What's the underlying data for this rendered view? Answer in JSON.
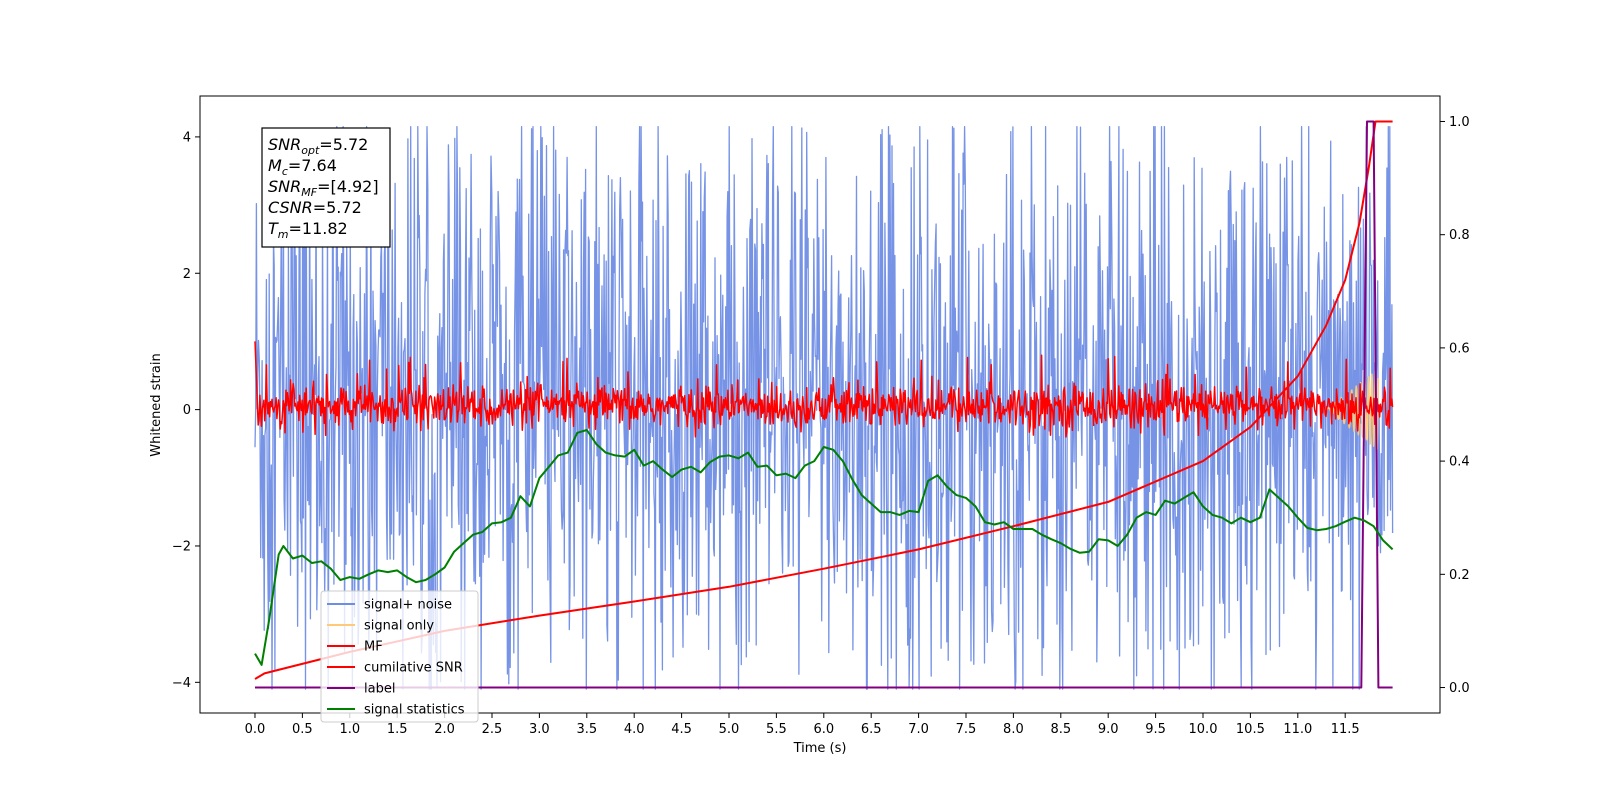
{
  "chart_data": {
    "type": "line",
    "xlabel": "Time (s)",
    "ylabel": "Whitened strain",
    "x_ticks": [
      "0.0",
      "0.5",
      "1.0",
      "1.5",
      "2.0",
      "2.5",
      "3.0",
      "3.5",
      "4.0",
      "4.5",
      "5.0",
      "5.5",
      "6.0",
      "6.5",
      "7.0",
      "7.5",
      "8.0",
      "8.5",
      "9.0",
      "9.5",
      "10.0",
      "10.5",
      "11.0",
      "11.5"
    ],
    "xlim": [
      -0.58,
      12.5
    ],
    "ylim": [
      -4.45,
      4.6
    ],
    "y_ticks": [
      "4",
      "2",
      "0",
      "−2",
      "−4"
    ],
    "y_tick_values": [
      4,
      2,
      0,
      -2,
      -4
    ],
    "y2lim": [
      -0.045,
      1.045
    ],
    "y2_ticks": [
      "1.0",
      "0.8",
      "0.6",
      "0.4",
      "0.2",
      "0.0"
    ],
    "y2_tick_values": [
      1.0,
      0.8,
      0.6,
      0.4,
      0.2,
      0.0
    ],
    "grid": false,
    "legend_position": "lower-left",
    "annotation_box": {
      "lines": [
        {
          "sym": "SNR",
          "sub": "opt",
          "val": "=5.72"
        },
        {
          "sym": "M",
          "sub": "c",
          "val": "=7.64"
        },
        {
          "sym": "SNR",
          "sub": "MF",
          "val": "=[4.92]"
        },
        {
          "sym": "CSNR",
          "sub": "",
          "val": "=5.72"
        },
        {
          "sym": "T",
          "sub": "m",
          "val": "=11.82"
        }
      ]
    },
    "series": [
      {
        "name": "signal+ noise",
        "color": "#6f8de5",
        "axis": "left",
        "kind": "noise",
        "x_range": [
          0.0,
          12.0
        ],
        "envelope": [
          -2.4,
          3.2
        ],
        "extremes": [
          -4.1,
          4.15
        ]
      },
      {
        "name": "signal only",
        "color": "#ffc978",
        "axis": "left",
        "kind": "chirp",
        "x_range": [
          11.3,
          11.85
        ],
        "amplitude": 0.6
      },
      {
        "name": "MF",
        "color": "#ff0000",
        "axis": "left",
        "kind": "noise",
        "x_range": [
          0.0,
          12.0
        ],
        "envelope": [
          -0.3,
          0.5
        ],
        "extremes": [
          -0.4,
          1.0
        ]
      },
      {
        "name": "cumilative SNR",
        "color": "#ff0000",
        "axis": "right",
        "x": [
          0.0,
          0.1,
          1.0,
          2.0,
          3.0,
          4.0,
          5.0,
          6.0,
          7.0,
          8.0,
          9.0,
          10.0,
          10.5,
          11.0,
          11.3,
          11.5,
          11.65,
          11.75,
          11.82,
          12.0
        ],
        "y": [
          0.015,
          0.025,
          0.063,
          0.1,
          0.127,
          0.152,
          0.178,
          0.21,
          0.244,
          0.285,
          0.328,
          0.4,
          0.46,
          0.55,
          0.64,
          0.72,
          0.82,
          0.92,
          1.0,
          1.0
        ]
      },
      {
        "name": "label",
        "color": "#800080",
        "axis": "right",
        "x": [
          0.0,
          11.67,
          11.73,
          11.77,
          11.8,
          11.85,
          11.93,
          11.95,
          12.0
        ],
        "y": [
          0.0,
          0.0,
          1.0,
          1.0,
          1.0,
          0.0,
          0.0,
          0.0,
          0.0
        ]
      },
      {
        "name": "signal statistics",
        "color": "#008000",
        "axis": "right",
        "x": [
          0.0,
          0.07,
          0.15,
          0.25,
          0.3,
          0.4,
          0.5,
          0.6,
          0.7,
          0.8,
          0.9,
          1.0,
          1.1,
          1.2,
          1.3,
          1.4,
          1.5,
          1.6,
          1.7,
          1.8,
          1.9,
          2.0,
          2.1,
          2.2,
          2.3,
          2.4,
          2.5,
          2.6,
          2.7,
          2.8,
          2.9,
          3.0,
          3.1,
          3.2,
          3.3,
          3.4,
          3.5,
          3.6,
          3.7,
          3.8,
          3.9,
          4.0,
          4.1,
          4.2,
          4.3,
          4.4,
          4.5,
          4.6,
          4.7,
          4.8,
          4.9,
          5.0,
          5.1,
          5.2,
          5.3,
          5.4,
          5.5,
          5.6,
          5.7,
          5.8,
          5.9,
          6.0,
          6.1,
          6.2,
          6.3,
          6.4,
          6.5,
          6.6,
          6.7,
          6.8,
          6.9,
          7.0,
          7.1,
          7.2,
          7.3,
          7.4,
          7.5,
          7.6,
          7.7,
          7.8,
          7.9,
          8.0,
          8.1,
          8.2,
          8.3,
          8.4,
          8.5,
          8.6,
          8.7,
          8.8,
          8.9,
          9.0,
          9.1,
          9.2,
          9.3,
          9.4,
          9.5,
          9.6,
          9.7,
          9.8,
          9.9,
          10.0,
          10.1,
          10.2,
          10.3,
          10.4,
          10.5,
          10.6,
          10.7,
          10.8,
          10.9,
          11.0,
          11.1,
          11.2,
          11.3,
          11.4,
          11.5,
          11.6,
          11.7,
          11.8,
          11.9,
          12.0
        ],
        "y": [
          0.06,
          0.04,
          0.12,
          0.235,
          0.25,
          0.228,
          0.233,
          0.22,
          0.223,
          0.21,
          0.19,
          0.195,
          0.192,
          0.2,
          0.207,
          0.204,
          0.207,
          0.195,
          0.186,
          0.19,
          0.2,
          0.212,
          0.24,
          0.255,
          0.27,
          0.275,
          0.29,
          0.292,
          0.3,
          0.338,
          0.32,
          0.37,
          0.39,
          0.41,
          0.415,
          0.45,
          0.455,
          0.43,
          0.415,
          0.41,
          0.408,
          0.42,
          0.392,
          0.4,
          0.385,
          0.372,
          0.385,
          0.39,
          0.38,
          0.398,
          0.408,
          0.41,
          0.405,
          0.415,
          0.39,
          0.392,
          0.375,
          0.378,
          0.37,
          0.392,
          0.4,
          0.425,
          0.42,
          0.4,
          0.368,
          0.34,
          0.325,
          0.31,
          0.31,
          0.305,
          0.312,
          0.31,
          0.365,
          0.375,
          0.355,
          0.34,
          0.335,
          0.32,
          0.292,
          0.288,
          0.292,
          0.28,
          0.28,
          0.28,
          0.27,
          0.262,
          0.255,
          0.245,
          0.238,
          0.24,
          0.262,
          0.26,
          0.25,
          0.27,
          0.3,
          0.31,
          0.305,
          0.33,
          0.325,
          0.335,
          0.345,
          0.32,
          0.305,
          0.3,
          0.29,
          0.3,
          0.292,
          0.3,
          0.35,
          0.335,
          0.32,
          0.3,
          0.282,
          0.278,
          0.28,
          0.285,
          0.293,
          0.3,
          0.295,
          0.285,
          0.26,
          0.244
        ]
      }
    ]
  }
}
